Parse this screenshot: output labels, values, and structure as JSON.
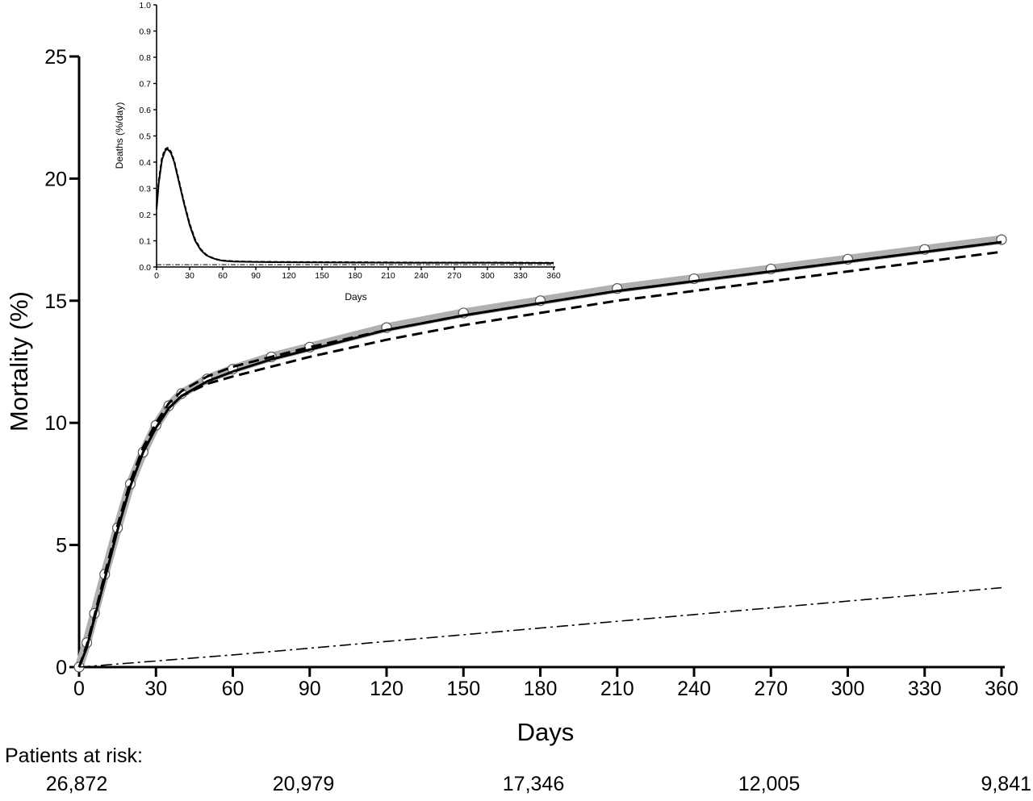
{
  "chart_data": [
    {
      "type": "line",
      "title": "",
      "xlabel": "Days",
      "ylabel": "Mortality (%)",
      "xlim": [
        0,
        360
      ],
      "ylim": [
        0,
        25
      ],
      "x_ticks": [
        0,
        30,
        60,
        90,
        120,
        150,
        180,
        210,
        240,
        270,
        300,
        330,
        360
      ],
      "y_ticks": [
        0,
        5,
        10,
        15,
        20,
        25
      ],
      "grid": false,
      "legend": "none",
      "series": [
        {
          "style": "open-circles",
          "x": [
            0,
            3,
            6,
            10,
            15,
            20,
            25,
            30,
            35,
            40,
            50,
            60,
            75,
            90,
            120,
            150,
            180,
            210,
            240,
            270,
            300,
            330,
            360
          ],
          "y": [
            0,
            1.0,
            2.2,
            3.8,
            5.7,
            7.5,
            8.8,
            9.9,
            10.7,
            11.2,
            11.8,
            12.2,
            12.7,
            13.1,
            13.9,
            14.5,
            15.0,
            15.5,
            15.9,
            16.3,
            16.7,
            17.1,
            17.5
          ]
        },
        {
          "style": "solid",
          "x": [
            0,
            3,
            6,
            10,
            15,
            20,
            25,
            30,
            35,
            40,
            50,
            60,
            75,
            90,
            120,
            150,
            180,
            210,
            240,
            270,
            300,
            330,
            360
          ],
          "y": [
            0,
            0.8,
            2.0,
            3.6,
            5.6,
            7.4,
            8.8,
            9.8,
            10.6,
            11.1,
            11.7,
            12.1,
            12.6,
            13.0,
            13.8,
            14.4,
            14.9,
            15.4,
            15.8,
            16.2,
            16.6,
            17.0,
            17.4
          ]
        },
        {
          "style": "dashed",
          "x": [
            0,
            3,
            6,
            10,
            15,
            20,
            25,
            30,
            35,
            40,
            50,
            60,
            75,
            90,
            120,
            150,
            180,
            210,
            240,
            270,
            300,
            330,
            360
          ],
          "y": [
            0,
            0.9,
            2.1,
            3.8,
            5.8,
            7.6,
            9.0,
            10.0,
            10.8,
            11.3,
            11.9,
            12.3,
            12.7,
            13.1,
            13.8,
            14.4,
            14.9,
            15.4,
            15.8,
            16.2,
            16.6,
            17.0,
            17.4
          ]
        },
        {
          "style": "dashed",
          "x": [
            0,
            3,
            6,
            10,
            15,
            20,
            25,
            30,
            35,
            40,
            50,
            60,
            75,
            90,
            120,
            150,
            180,
            210,
            240,
            270,
            300,
            330,
            360
          ],
          "y": [
            0,
            0.8,
            2.0,
            3.7,
            5.7,
            7.5,
            8.9,
            9.9,
            10.6,
            11.1,
            11.6,
            11.9,
            12.3,
            12.7,
            13.4,
            14.0,
            14.5,
            15.0,
            15.4,
            15.8,
            16.2,
            16.6,
            17.0
          ]
        },
        {
          "style": "dash-dot",
          "x": [
            0,
            60,
            120,
            180,
            240,
            300,
            360
          ],
          "y": [
            0,
            0.5,
            1.05,
            1.6,
            2.15,
            2.7,
            3.25
          ]
        }
      ]
    },
    {
      "type": "line",
      "title": "",
      "xlabel": "Days",
      "ylabel": "Deaths (%/day)",
      "xlim": [
        0,
        360
      ],
      "ylim": [
        0,
        1.0
      ],
      "x_ticks": [
        0,
        30,
        60,
        90,
        120,
        150,
        180,
        210,
        240,
        270,
        300,
        330,
        360
      ],
      "y_ticks": [
        "0.0",
        "0.1",
        "0.2",
        "0.3",
        "0.4",
        "0.5",
        "0.6",
        "0.7",
        "0.8",
        "0.9",
        "1.0"
      ],
      "grid": false,
      "legend": "none",
      "series": [
        {
          "style": "solid",
          "x": [
            0,
            2,
            5,
            8,
            10,
            13,
            16,
            20,
            25,
            30,
            35,
            40,
            45,
            50,
            55,
            60,
            70,
            80,
            90,
            120,
            180,
            240,
            300,
            360
          ],
          "y": [
            0.22,
            0.32,
            0.41,
            0.445,
            0.45,
            0.435,
            0.4,
            0.33,
            0.24,
            0.16,
            0.1,
            0.065,
            0.045,
            0.035,
            0.028,
            0.024,
            0.021,
            0.02,
            0.019,
            0.018,
            0.017,
            0.016,
            0.016,
            0.015
          ]
        },
        {
          "style": "dashed",
          "x": [
            0,
            2,
            5,
            8,
            10,
            13,
            16,
            20,
            25,
            30,
            35,
            40,
            45,
            50,
            55,
            60,
            70,
            80,
            90,
            120,
            180,
            240,
            300,
            360
          ],
          "y": [
            0.23,
            0.33,
            0.42,
            0.45,
            0.455,
            0.44,
            0.405,
            0.335,
            0.245,
            0.165,
            0.105,
            0.068,
            0.047,
            0.036,
            0.029,
            0.025,
            0.022,
            0.021,
            0.02,
            0.019,
            0.018,
            0.017,
            0.017,
            0.016
          ]
        },
        {
          "style": "dash-dot",
          "x": [
            0,
            360
          ],
          "y": [
            0.009,
            0.009
          ]
        }
      ]
    }
  ],
  "patients_at_risk": {
    "label": "Patients at risk:",
    "values": [
      "26,872",
      "20,979",
      "17,346",
      "12,005",
      "9,841"
    ]
  }
}
